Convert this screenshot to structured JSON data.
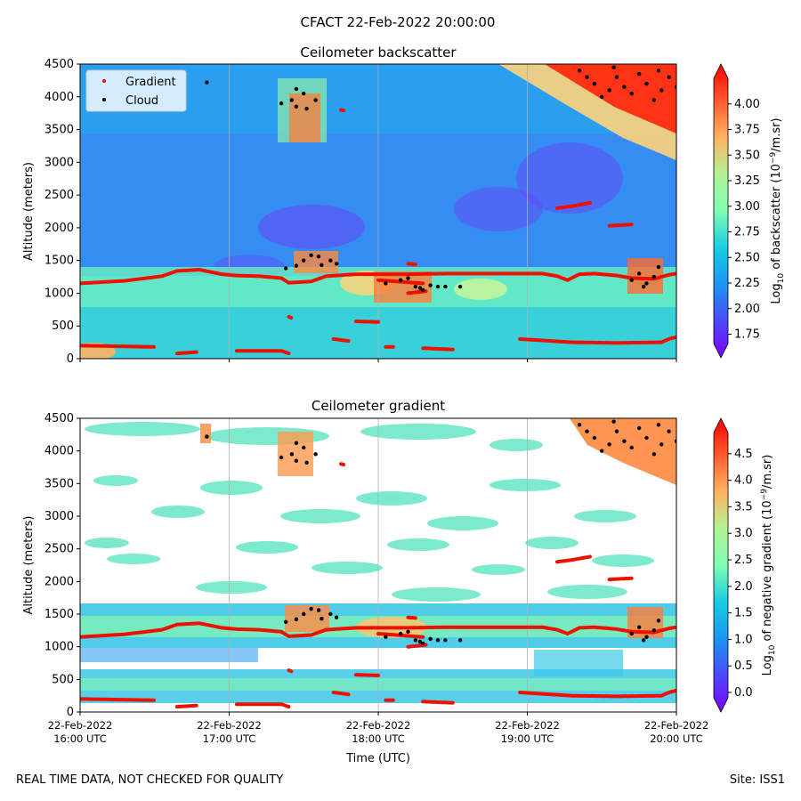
{
  "figure": {
    "suptitle": "CFACT 22-Feb-2022 20:00:00",
    "footer_left": "REAL TIME DATA, NOT CHECKED FOR QUALITY",
    "footer_right": "Site: ISS1",
    "colors": {
      "gradient_marker": "#ee1100",
      "cloud_marker": "#000000",
      "gridline": "#b0b0b0"
    }
  },
  "chart_data": [
    {
      "type": "heatmap",
      "title": "Ceilometer backscatter",
      "xlabel": "",
      "ylabel": "Altitude (meters)",
      "ylim": [
        0,
        4500
      ],
      "yticks": [
        0,
        500,
        1000,
        1500,
        2000,
        2500,
        3000,
        3500,
        4000,
        4500
      ],
      "xlim_hours_utc": [
        16,
        20
      ],
      "xticks_hours_utc": [
        16,
        17,
        18,
        19,
        20
      ],
      "xtick_labels": [],
      "grid": "vertical",
      "legend": {
        "placement": "upper-left",
        "entries": [
          "Gradient",
          "Cloud"
        ]
      },
      "colorbar": {
        "label": "Log10 of backscatter (10^-9/m.sr)",
        "label_main": "Log",
        "label_sub": "10",
        "label_tail": " of backscatter (10",
        "label_sup": "−9",
        "label_end": "/m.sr)",
        "min": 1.65,
        "max": 4.25,
        "ticks": [
          1.75,
          2.0,
          2.25,
          2.5,
          2.75,
          3.0,
          3.25,
          3.5,
          3.75,
          4.0
        ],
        "tick_labels": [
          "1.75",
          "2.00",
          "2.25",
          "2.50",
          "2.75",
          "3.00",
          "3.25",
          "3.50",
          "3.75",
          "4.00"
        ],
        "extend": "both",
        "colormap": "rainbow"
      },
      "gradient_series": {
        "name": "Gradient",
        "segments": [
          [
            [
              16.0,
              1150
            ],
            [
              16.3,
              1190
            ],
            [
              16.55,
              1260
            ],
            [
              16.65,
              1340
            ],
            [
              16.8,
              1360
            ],
            [
              16.95,
              1290
            ],
            [
              17.05,
              1270
            ],
            [
              17.2,
              1260
            ],
            [
              17.35,
              1230
            ],
            [
              17.4,
              1160
            ],
            [
              17.55,
              1180
            ],
            [
              17.65,
              1260
            ],
            [
              17.85,
              1290
            ],
            [
              18.05,
              1290
            ],
            [
              18.2,
              1290
            ],
            [
              18.45,
              1300
            ],
            [
              18.7,
              1300
            ],
            [
              18.95,
              1300
            ],
            [
              19.1,
              1300
            ],
            [
              19.2,
              1260
            ],
            [
              19.27,
              1200
            ],
            [
              19.35,
              1290
            ],
            [
              19.45,
              1300
            ],
            [
              19.6,
              1270
            ],
            [
              19.7,
              1230
            ],
            [
              19.85,
              1220
            ],
            [
              19.95,
              1280
            ],
            [
              20.0,
              1300
            ]
          ],
          [
            [
              16.0,
              200
            ],
            [
              16.5,
              180
            ]
          ],
          [
            [
              16.65,
              80
            ],
            [
              16.78,
              100
            ]
          ],
          [
            [
              17.05,
              120
            ],
            [
              17.35,
              120
            ],
            [
              17.4,
              80
            ]
          ],
          [
            [
              17.7,
              300
            ],
            [
              17.8,
              270
            ]
          ],
          [
            [
              17.85,
              570
            ],
            [
              18.0,
              560
            ]
          ],
          [
            [
              18.05,
              180
            ],
            [
              18.1,
              180
            ]
          ],
          [
            [
              18.3,
              160
            ],
            [
              18.5,
              140
            ]
          ],
          [
            [
              18.0,
              1200
            ],
            [
              18.3,
              1150
            ]
          ],
          [
            [
              18.2,
              1000
            ],
            [
              18.32,
              1030
            ]
          ],
          [
            [
              18.95,
              300
            ],
            [
              19.3,
              250
            ],
            [
              19.6,
              240
            ],
            [
              19.9,
              250
            ],
            [
              19.95,
              300
            ],
            [
              20.0,
              330
            ]
          ],
          [
            [
              19.2,
              2300
            ],
            [
              19.3,
              2330
            ],
            [
              19.42,
              2380
            ]
          ],
          [
            [
              19.55,
              2030
            ],
            [
              19.7,
              2050
            ]
          ],
          [
            [
              17.75,
              3800
            ],
            [
              17.77,
              3790
            ]
          ],
          [
            [
              18.2,
              1450
            ],
            [
              18.25,
              1440
            ]
          ],
          [
            [
              17.4,
              640
            ],
            [
              17.42,
              620
            ]
          ]
        ]
      },
      "cloud_series": {
        "name": "Cloud",
        "points": [
          [
            16.85,
            4220
          ],
          [
            17.35,
            3900
          ],
          [
            17.42,
            3950
          ],
          [
            17.45,
            4120
          ],
          [
            17.5,
            4050
          ],
          [
            17.52,
            3820
          ],
          [
            17.58,
            3950
          ],
          [
            17.45,
            3850
          ],
          [
            17.38,
            1380
          ],
          [
            17.45,
            1420
          ],
          [
            17.5,
            1500
          ],
          [
            17.55,
            1580
          ],
          [
            17.6,
            1560
          ],
          [
            17.68,
            1500
          ],
          [
            17.72,
            1450
          ],
          [
            17.62,
            1430
          ],
          [
            18.05,
            1150
          ],
          [
            18.15,
            1200
          ],
          [
            18.2,
            1230
          ],
          [
            18.25,
            1100
          ],
          [
            18.3,
            1050
          ],
          [
            18.35,
            1120
          ],
          [
            18.28,
            1080
          ],
          [
            18.4,
            1100
          ],
          [
            18.45,
            1100
          ],
          [
            18.55,
            1100
          ],
          [
            19.7,
            1200
          ],
          [
            19.75,
            1300
          ],
          [
            19.8,
            1150
          ],
          [
            19.85,
            1250
          ],
          [
            19.88,
            1400
          ],
          [
            19.78,
            1100
          ],
          [
            19.35,
            4400
          ],
          [
            19.4,
            4300
          ],
          [
            19.45,
            4200
          ],
          [
            19.5,
            4000
          ],
          [
            19.55,
            4100
          ],
          [
            19.6,
            4300
          ],
          [
            19.65,
            4150
          ],
          [
            19.7,
            4050
          ],
          [
            19.75,
            4350
          ],
          [
            19.8,
            4200
          ],
          [
            19.85,
            3950
          ],
          [
            19.9,
            4100
          ],
          [
            19.95,
            4300
          ],
          [
            20.0,
            4150
          ],
          [
            19.58,
            4450
          ],
          [
            19.88,
            4400
          ]
        ]
      }
    },
    {
      "type": "heatmap",
      "title": "Ceilometer gradient",
      "xlabel": "Time (UTC)",
      "ylabel": "Altitude (meters)",
      "ylim": [
        0,
        4500
      ],
      "yticks": [
        0,
        500,
        1000,
        1500,
        2000,
        2500,
        3000,
        3500,
        4000,
        4500
      ],
      "xlim_hours_utc": [
        16,
        20
      ],
      "xticks_hours_utc": [
        16,
        17,
        18,
        19,
        20
      ],
      "xtick_labels": [
        [
          "22-Feb-2022",
          "16:00 UTC"
        ],
        [
          "22-Feb-2022",
          "17:00 UTC"
        ],
        [
          "22-Feb-2022",
          "18:00 UTC"
        ],
        [
          "22-Feb-2022",
          "19:00 UTC"
        ],
        [
          "22-Feb-2022",
          "20:00 UTC"
        ]
      ],
      "grid": "vertical",
      "colorbar": {
        "label": "Log10 of negative gradient (10^-9/m.sr)",
        "label_main": "Log",
        "label_sub": "10",
        "label_tail": " of negative gradient (10",
        "label_sup": "−9",
        "label_end": "/m.sr)",
        "min": -0.1,
        "max": 4.9,
        "ticks": [
          0.0,
          0.5,
          1.0,
          1.5,
          2.0,
          2.5,
          3.0,
          3.5,
          4.0,
          4.5
        ],
        "tick_labels": [
          "0.0",
          "0.5",
          "1.0",
          "1.5",
          "2.0",
          "2.5",
          "3.0",
          "3.5",
          "4.0",
          "4.5"
        ],
        "extend": "both",
        "colormap": "rainbow"
      },
      "same_overlay_as_panel": 0
    }
  ]
}
